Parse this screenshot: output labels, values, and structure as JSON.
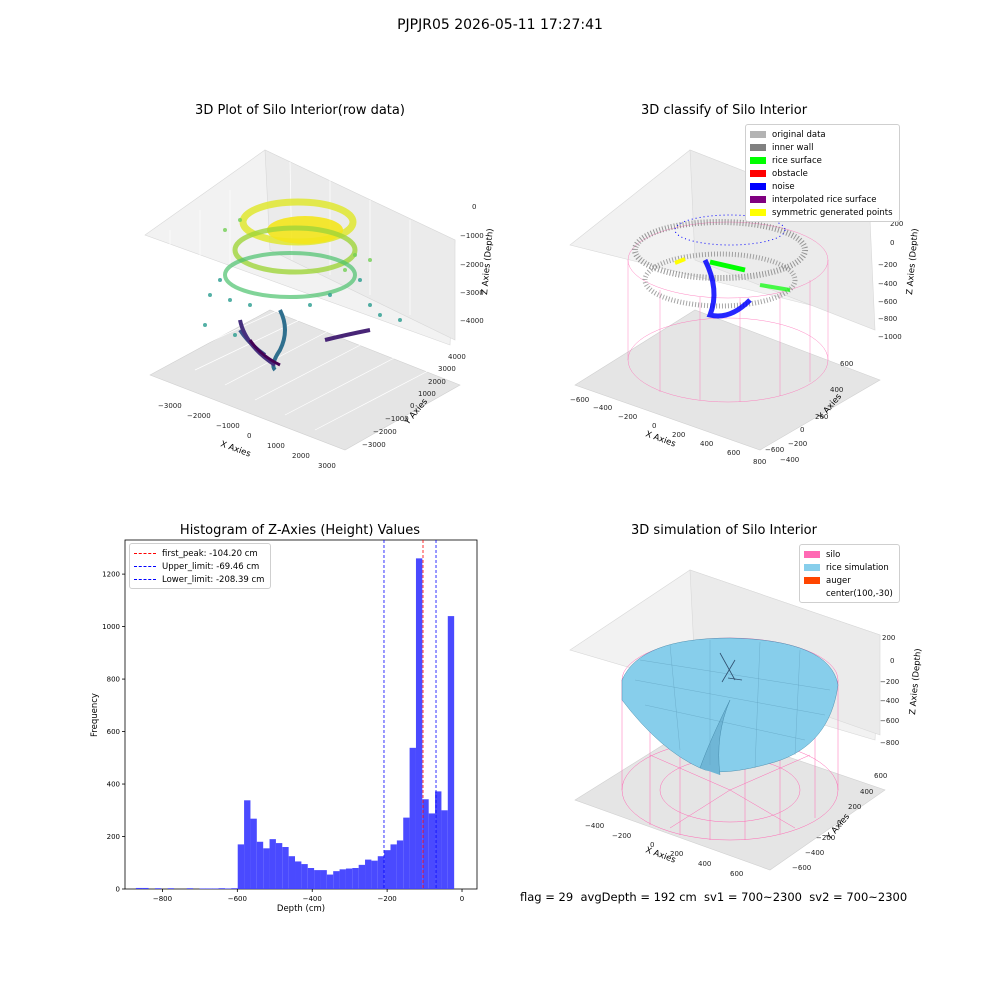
{
  "suptitle": "PJPJR05 2026-05-11 17:27:41",
  "panels": {
    "raw": {
      "title": "3D Plot of Silo Interior(row data)",
      "xlabel": "X Axies",
      "ylabel": "Y Axies",
      "zlabel": "Z Axies (Depth)",
      "xticks": [
        "−3000",
        "−2000",
        "−1000",
        "0",
        "1000",
        "2000",
        "3000"
      ],
      "yticks": [
        "4000",
        "3000",
        "2000",
        "1000",
        "0",
        "−1000",
        "−2000",
        "−3000"
      ],
      "zticks": [
        "0",
        "−1000",
        "−2000",
        "−3000",
        "−4000"
      ]
    },
    "classify": {
      "title": "3D classify of Silo Interior",
      "xlabel": "X Axies",
      "ylabel": "Y Axies",
      "zlabel": "Z Axies (Depth)",
      "xticks": [
        "−600",
        "−400",
        "−200",
        "0",
        "200",
        "400",
        "600",
        "800"
      ],
      "yticks": [
        "600",
        "400",
        "200",
        "0",
        "−200",
        "−400",
        "−600"
      ],
      "zticks": [
        "200",
        "0",
        "−200",
        "−400",
        "−600",
        "−800",
        "−1000"
      ],
      "legend": [
        {
          "label": "original data",
          "color": "#b3b3b3"
        },
        {
          "label": "inner wall",
          "color": "#808080"
        },
        {
          "label": "rice surface",
          "color": "#00ff00"
        },
        {
          "label": "obstacle",
          "color": "#ff0000"
        },
        {
          "label": "noise",
          "color": "#0000ff"
        },
        {
          "label": "interpolated rice surface",
          "color": "#800080"
        },
        {
          "label": "symmetric generated points",
          "color": "#ffff00"
        }
      ]
    },
    "simulation": {
      "title": "3D simulation of Silo Interior",
      "xlabel": "X Axies",
      "ylabel": "Y Axies",
      "zlabel": "Z Axies (Depth)",
      "xticks": [
        "−400",
        "−200",
        "0",
        "200",
        "400",
        "600"
      ],
      "yticks": [
        "600",
        "400",
        "200",
        "0",
        "−200",
        "−400",
        "−600"
      ],
      "zticks": [
        "200",
        "0",
        "−200",
        "−400",
        "−600",
        "−800"
      ],
      "legend": [
        {
          "label": "silo",
          "color": "#ff69b4"
        },
        {
          "label": "rice simulation",
          "color": "#87ceeb"
        },
        {
          "label": "auger",
          "color": "#ff4500"
        },
        {
          "label": "center(100,-30)",
          "color": ""
        }
      ]
    }
  },
  "footer": "flag = 29  avgDepth = 192 cm  sv1 = 700~2300  sv2 = 700~2300",
  "chart_data": {
    "type": "bar",
    "title": "Histogram of Z-Axies (Height) Values",
    "xlabel": "Depth (cm)",
    "ylabel": "Frequency",
    "xlim": [
      -900,
      40
    ],
    "ylim": [
      0,
      1330
    ],
    "bar_color": "#4040ff",
    "xticks": [
      -800,
      -600,
      -400,
      -200,
      0
    ],
    "yticks": [
      0,
      200,
      400,
      600,
      800,
      1000,
      1200
    ],
    "bin_width": 17,
    "bin_starts": [
      -871,
      -854,
      -837,
      -820,
      -803,
      -786,
      -769,
      -752,
      -735,
      -718,
      -701,
      -684,
      -667,
      -650,
      -633,
      -616,
      -599,
      -582,
      -565,
      -548,
      -531,
      -514,
      -497,
      -480,
      -463,
      -446,
      -429,
      -412,
      -395,
      -378,
      -361,
      -344,
      -327,
      -310,
      -293,
      -276,
      -259,
      -242,
      -225,
      -208,
      -191,
      -174,
      -157,
      -140,
      -123,
      -106,
      -89,
      -72,
      -55,
      -38,
      -21,
      -4
    ],
    "values": [
      4,
      4,
      0,
      3,
      0,
      3,
      0,
      0,
      3,
      0,
      2,
      2,
      2,
      3,
      2,
      3,
      170,
      338,
      268,
      180,
      155,
      190,
      175,
      160,
      125,
      105,
      95,
      80,
      72,
      72,
      55,
      68,
      75,
      78,
      80,
      92,
      112,
      108,
      125,
      148,
      170,
      185,
      272,
      538,
      1260,
      342,
      288,
      372,
      300,
      1040,
      0,
      0
    ],
    "lines": [
      {
        "label": "first_peak: -104.20 cm",
        "x": -104.2,
        "color": "#ff0000"
      },
      {
        "label": "Upper_limit: -69.46 cm",
        "x": -69.46,
        "color": "#0000ff"
      },
      {
        "label": "Lower_limit: -208.39 cm",
        "x": -208.39,
        "color": "#0000ff"
      }
    ]
  }
}
